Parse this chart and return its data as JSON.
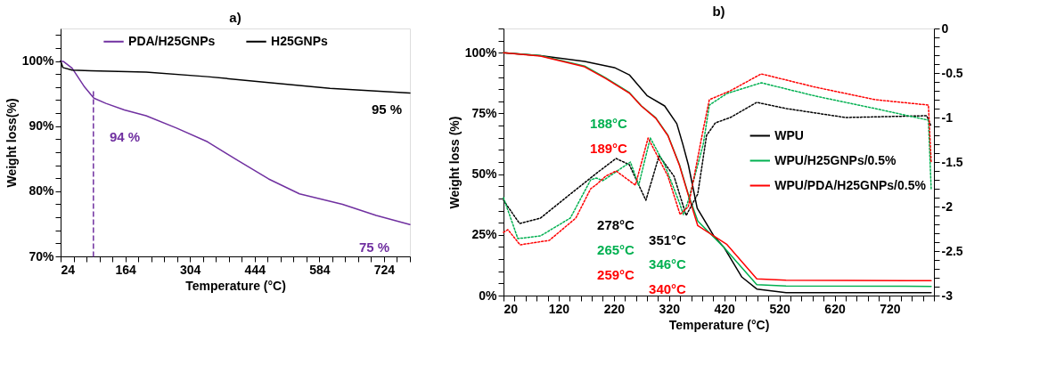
{
  "chart_data": [
    {
      "type": "line",
      "title": "a)",
      "xlabel": "Temperature (°C)",
      "ylabel": "Weight loss(%)",
      "legend": "top",
      "xlim": [
        24,
        780
      ],
      "ylim": [
        70,
        105
      ],
      "xticks": [
        24,
        {
          "value": 52,
          "label": null
        },
        {
          "value": 80,
          "label": null
        },
        {
          "value": 108,
          "label": null
        },
        {
          "value": 136,
          "label": null
        },
        164,
        {
          "value": 192,
          "label": null
        },
        {
          "value": 220,
          "label": null
        },
        {
          "value": 248,
          "label": null
        },
        {
          "value": 276,
          "label": null
        },
        304,
        {
          "value": 332,
          "label": null
        },
        {
          "value": 360,
          "label": null
        },
        {
          "value": 388,
          "label": null
        },
        {
          "value": 416,
          "label": null
        },
        444,
        {
          "value": 472,
          "label": null
        },
        {
          "value": 500,
          "label": null
        },
        {
          "value": 528,
          "label": null
        },
        {
          "value": 556,
          "label": null
        },
        584,
        {
          "value": 612,
          "label": null
        },
        {
          "value": 640,
          "label": null
        },
        {
          "value": 668,
          "label": null
        },
        {
          "value": 696,
          "label": null
        },
        724,
        {
          "value": 752,
          "label": null
        },
        {
          "value": 780,
          "label": null
        }
      ],
      "yticks": [
        {
          "value": 70,
          "label": "70%"
        },
        {
          "value": 72,
          "label": null
        },
        {
          "value": 74,
          "label": null
        },
        {
          "value": 76,
          "label": null
        },
        {
          "value": 78,
          "label": null
        },
        {
          "value": 80,
          "label": "80%"
        },
        {
          "value": 82,
          "label": null
        },
        {
          "value": 84,
          "label": null
        },
        {
          "value": 86,
          "label": null
        },
        {
          "value": 88,
          "label": null
        },
        {
          "value": 90,
          "label": "90%"
        },
        {
          "value": 92,
          "label": null
        },
        {
          "value": 94,
          "label": null
        },
        {
          "value": 96,
          "label": null
        },
        {
          "value": 98,
          "label": null
        },
        {
          "value": 100,
          "label": "100%"
        },
        {
          "value": 102,
          "label": null
        },
        {
          "value": 104,
          "label": null
        }
      ],
      "series": [
        {
          "name": "PDA/H25GNPs",
          "color": "#7030a0",
          "x": [
            24,
            31,
            49,
            76,
            96,
            122,
            162,
            209,
            275,
            342,
            408,
            474,
            541,
            634,
            707,
            780
          ],
          "values": [
            100,
            99.9,
            98.9,
            96.0,
            94.3,
            93.5,
            92.5,
            91.6,
            89.7,
            87.6,
            84.7,
            81.9,
            79.6,
            78.0,
            76.3,
            74.9
          ]
        },
        {
          "name": "H25GNPs",
          "color": "#000000",
          "x": [
            24,
            29,
            49,
            89,
            209,
            342,
            474,
            607,
            780
          ],
          "values": [
            100,
            99.0,
            98.6,
            98.5,
            98.3,
            97.6,
            96.7,
            95.8,
            95.1
          ]
        },
        {
          "type": "line",
          "color": "#7030a0",
          "line_style": "dashed",
          "x": [
            95,
            95
          ],
          "values": [
            70,
            95.8
          ]
        }
      ],
      "annotations": [
        "94 %",
        "95 %",
        "75 %"
      ]
    },
    {
      "type": "line",
      "title": "b)",
      "xlabel": "Temperature (°C)",
      "ylabel": "Weight loss (%)",
      "legend": "right",
      "xlim": [
        20,
        800
      ],
      "ylim": [
        0,
        110
      ],
      "y2lim": [
        -3,
        0
      ],
      "xticks": [
        20,
        {
          "value": 40,
          "label": null
        },
        {
          "value": 60,
          "label": null
        },
        {
          "value": 80,
          "label": null
        },
        {
          "value": 100,
          "label": null
        },
        120,
        {
          "value": 140,
          "label": null
        },
        {
          "value": 160,
          "label": null
        },
        {
          "value": 180,
          "label": null
        },
        {
          "value": 200,
          "label": null
        },
        220,
        {
          "value": 240,
          "label": null
        },
        {
          "value": 260,
          "label": null
        },
        {
          "value": 280,
          "label": null
        },
        {
          "value": 300,
          "label": null
        },
        320,
        {
          "value": 340,
          "label": null
        },
        {
          "value": 360,
          "label": null
        },
        {
          "value": 380,
          "label": null
        },
        {
          "value": 400,
          "label": null
        },
        420,
        {
          "value": 440,
          "label": null
        },
        {
          "value": 460,
          "label": null
        },
        {
          "value": 480,
          "label": null
        },
        {
          "value": 500,
          "label": null
        },
        520,
        {
          "value": 540,
          "label": null
        },
        {
          "value": 560,
          "label": null
        },
        {
          "value": 580,
          "label": null
        },
        {
          "value": 600,
          "label": null
        },
        620,
        {
          "value": 640,
          "label": null
        },
        {
          "value": 660,
          "label": null
        },
        {
          "value": 680,
          "label": null
        },
        {
          "value": 700,
          "label": null
        },
        720,
        {
          "value": 740,
          "label": null
        },
        {
          "value": 760,
          "label": null
        },
        {
          "value": 780,
          "label": null
        },
        {
          "value": 800,
          "label": null
        }
      ],
      "yticks": [
        {
          "value": 0,
          "label": "0%"
        },
        {
          "value": 5,
          "label": null
        },
        {
          "value": 10,
          "label": null
        },
        {
          "value": 15,
          "label": null
        },
        {
          "value": 20,
          "label": null
        },
        {
          "value": 25,
          "label": "25%"
        },
        {
          "value": 30,
          "label": null
        },
        {
          "value": 35,
          "label": null
        },
        {
          "value": 40,
          "label": null
        },
        {
          "value": 45,
          "label": null
        },
        {
          "value": 50,
          "label": "50%"
        },
        {
          "value": 55,
          "label": null
        },
        {
          "value": 60,
          "label": null
        },
        {
          "value": 65,
          "label": null
        },
        {
          "value": 70,
          "label": null
        },
        {
          "value": 75,
          "label": "75%"
        },
        {
          "value": 80,
          "label": null
        },
        {
          "value": 85,
          "label": null
        },
        {
          "value": 90,
          "label": null
        },
        {
          "value": 95,
          "label": null
        },
        {
          "value": 100,
          "label": "100%"
        },
        {
          "value": 105,
          "label": null
        },
        {
          "value": 110,
          "label": null
        }
      ],
      "y2ticks": [
        0,
        {
          "value": -0.1,
          "label": null
        },
        {
          "value": -0.2,
          "label": null
        },
        {
          "value": -0.3,
          "label": null
        },
        {
          "value": -0.4,
          "label": null
        },
        -0.5,
        {
          "value": -0.6,
          "label": null
        },
        {
          "value": -0.7,
          "label": null
        },
        {
          "value": -0.8,
          "label": null
        },
        {
          "value": -0.9,
          "label": null
        },
        -1,
        {
          "value": -1.1,
          "label": null
        },
        {
          "value": -1.2,
          "label": null
        },
        {
          "value": -1.3,
          "label": null
        },
        {
          "value": -1.4,
          "label": null
        },
        -1.5,
        {
          "value": -1.6,
          "label": null
        },
        {
          "value": -1.7,
          "label": null
        },
        {
          "value": -1.8,
          "label": null
        },
        {
          "value": -1.9,
          "label": null
        },
        -2,
        {
          "value": -2.1,
          "label": null
        },
        {
          "value": -2.2,
          "label": null
        },
        {
          "value": -2.3,
          "label": null
        },
        {
          "value": -2.4,
          "label": null
        },
        -2.5,
        {
          "value": -2.6,
          "label": null
        },
        {
          "value": -2.7,
          "label": null
        },
        {
          "value": -2.8,
          "label": null
        },
        {
          "value": -2.9,
          "label": null
        },
        -3
      ],
      "series": [
        {
          "name": "WPU",
          "color": "#000000",
          "x": [
            20,
            87,
            167,
            221,
            248,
            280,
            312,
            334,
            345,
            355,
            371,
            401,
            420,
            452,
            479,
            532,
            795
          ],
          "values": [
            100,
            98.8,
            96.4,
            93.9,
            90.9,
            82.4,
            78.1,
            70.8,
            62.3,
            53.8,
            36,
            24.6,
            19.7,
            7.6,
            2.7,
            1.2,
            1.2
          ]
        },
        {
          "name": "WPU/H25GNPs/0.5%",
          "color": "#00b050",
          "x": [
            20,
            87,
            167,
            205,
            248,
            270,
            296,
            318,
            339,
            355,
            372,
            420,
            479,
            532,
            795
          ],
          "values": [
            100,
            98.8,
            94.5,
            89.7,
            83.6,
            78.1,
            73.2,
            66,
            53.8,
            41.6,
            30.7,
            19.7,
            4.5,
            3.9,
            3.8
          ]
        },
        {
          "name": "WPU/PDA/H25GNPs/0.5%",
          "color": "#ff0000",
          "x": [
            20,
            87,
            167,
            205,
            248,
            270,
            296,
            318,
            339,
            355,
            372,
            425,
            479,
            532,
            795
          ],
          "values": [
            100,
            98.6,
            94.2,
            89.4,
            83.4,
            78.0,
            73.0,
            65.8,
            53.5,
            41.3,
            28.8,
            21,
            6.9,
            6.3,
            6.1
          ]
        },
        {
          "type": "line",
          "axis": "y2",
          "color": "#000000",
          "line_style": "dotted",
          "x": [
            20,
            49,
            87,
            141,
            194,
            224,
            248,
            278,
            302,
            329,
            351,
            372,
            388,
            404,
            431,
            479,
            533,
            640,
            787,
            795
          ],
          "values": [
            -1.93,
            -2.19,
            -2.13,
            -1.86,
            -1.6,
            -1.46,
            -1.53,
            -1.93,
            -1.43,
            -1.66,
            -2.1,
            -1.86,
            -1.2,
            -1.06,
            -1.0,
            -0.83,
            -0.9,
            -1.0,
            -0.98,
            -1.1
          ]
        },
        {
          "type": "line",
          "axis": "y2",
          "color": "#00b050",
          "line_style": "dotted",
          "x": [
            20,
            46,
            87,
            141,
            178,
            188,
            200,
            250,
            265,
            286,
            312,
            339,
            346,
            355,
            382,
            393,
            425,
            487,
            586,
            694,
            790,
            795
          ],
          "values": [
            -1.9,
            -2.36,
            -2.33,
            -2.13,
            -1.7,
            -1.68,
            -1.71,
            -1.5,
            -1.76,
            -1.23,
            -1.53,
            -1.96,
            -2.09,
            -1.93,
            -1.3,
            -0.86,
            -0.73,
            -0.61,
            -0.76,
            -0.9,
            -1.03,
            -1.8
          ]
        },
        {
          "type": "line",
          "axis": "y2",
          "color": "#ff0000",
          "line_style": "dotted",
          "x": [
            20,
            28,
            50,
            103,
            151,
            178,
            189,
            205,
            224,
            259,
            282,
            318,
            340,
            355,
            382,
            393,
            431,
            487,
            586,
            694,
            790,
            795
          ],
          "values": [
            -2.29,
            -2.26,
            -2.43,
            -2.38,
            -2.13,
            -1.8,
            -1.75,
            -1.66,
            -1.6,
            -1.76,
            -1.23,
            -1.66,
            -2.09,
            -2.0,
            -1.13,
            -0.8,
            -0.7,
            -0.51,
            -0.66,
            -0.8,
            -0.86,
            -1.5
          ]
        }
      ],
      "annotations": [
        "188°C",
        "189°C",
        "278°C",
        "265°C",
        "259°C",
        "351°C",
        "346°C",
        "340°C"
      ]
    }
  ]
}
